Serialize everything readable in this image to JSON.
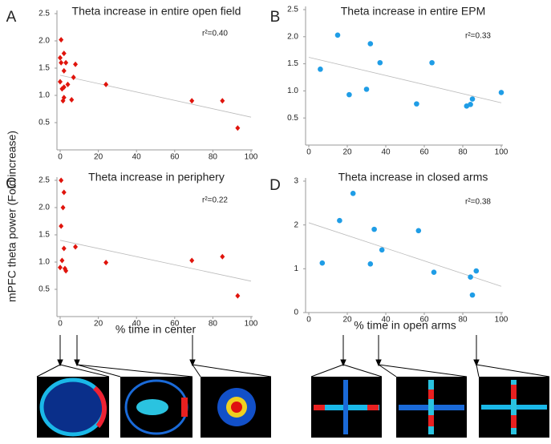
{
  "shared_ylabel": "mPFC theta power (Fold increase)",
  "chart_data": [
    {
      "type": "scatter",
      "label": "A",
      "title": "Theta increase in entire open field",
      "annotation": "r²=0.40",
      "marker": "diamond",
      "color": "#e0140c",
      "x": [
        0.5,
        0,
        2,
        0.5,
        3,
        8,
        2,
        0,
        7,
        1,
        2,
        4,
        2,
        1.5,
        6,
        24,
        69,
        85,
        93
      ],
      "values": [
        2.02,
        1.69,
        1.77,
        1.6,
        1.6,
        1.57,
        1.45,
        1.25,
        1.33,
        1.12,
        1.15,
        1.2,
        0.96,
        0.9,
        0.92,
        1.2,
        0.9,
        0.9,
        0.4
      ],
      "trend": {
        "x": [
          0,
          100
        ],
        "y": [
          1.37,
          0.6
        ]
      },
      "xlim": [
        0,
        100
      ],
      "ylim": [
        0,
        2.5
      ],
      "xticks": [
        0,
        20,
        40,
        60,
        80,
        100
      ],
      "yticks": [
        0.5,
        {
          "value": 1.0,
          "label": "1.0"
        },
        1.5,
        {
          "value": 2.0,
          "label": "2.0"
        },
        2.5
      ]
    },
    {
      "type": "scatter",
      "label": "B",
      "title": "Theta increase in entire EPM",
      "annotation": "r²=0.33",
      "marker": "circle",
      "color": "#1f9de6",
      "x": [
        6,
        15,
        21,
        30,
        32,
        37,
        56,
        64,
        82,
        84,
        85,
        100
      ],
      "values": [
        1.4,
        2.03,
        0.93,
        1.03,
        1.87,
        1.52,
        0.76,
        1.52,
        0.72,
        0.75,
        0.85,
        0.97
      ],
      "trend": {
        "x": [
          0,
          100
        ],
        "y": [
          1.62,
          0.78
        ]
      },
      "xlim": [
        0,
        100
      ],
      "ylim": [
        0,
        2.5
      ],
      "xticks": [
        0,
        20,
        40,
        60,
        80,
        100
      ],
      "yticks": [
        0.5,
        {
          "value": 1.0,
          "label": "1.0"
        },
        1.5,
        {
          "value": 2.0,
          "label": "2.0"
        },
        2.5
      ]
    },
    {
      "type": "scatter",
      "label": "C",
      "title": "Theta increase in periphery",
      "annotation": "r²=0.22",
      "marker": "diamond",
      "color": "#e0140c",
      "xlabel": "% time in center",
      "x": [
        0.5,
        2,
        1.5,
        0.5,
        2,
        1,
        0,
        2.5,
        3,
        8,
        24,
        69,
        85,
        93
      ],
      "values": [
        2.5,
        2.28,
        2.0,
        1.66,
        1.25,
        1.03,
        0.9,
        0.88,
        0.84,
        1.28,
        0.99,
        1.03,
        1.1,
        0.38
      ],
      "trend": {
        "x": [
          0,
          100
        ],
        "y": [
          1.4,
          0.65
        ]
      },
      "xlim": [
        0,
        100
      ],
      "ylim": [
        0,
        2.5
      ],
      "xticks": [
        0,
        20,
        40,
        60,
        80,
        100
      ],
      "yticks": [
        0.5,
        {
          "value": 1.0,
          "label": "1.0"
        },
        1.5,
        {
          "value": 2.0,
          "label": "2.0"
        },
        2.5
      ]
    },
    {
      "type": "scatter",
      "label": "D",
      "title": "Theta increase in closed arms",
      "annotation": "r²=0.38",
      "marker": "circle",
      "color": "#1f9de6",
      "xlabel": "% time in open arms",
      "x": [
        7,
        16,
        23,
        32,
        34,
        38,
        57,
        65,
        84,
        85,
        87
      ],
      "values": [
        1.13,
        2.1,
        2.72,
        1.11,
        1.9,
        1.43,
        1.87,
        0.92,
        0.81,
        0.4,
        0.95
      ],
      "trend": {
        "x": [
          0,
          100
        ],
        "y": [
          2.05,
          0.6
        ]
      },
      "xlim": [
        0,
        100
      ],
      "ylim": [
        0,
        3
      ],
      "xticks": [
        0,
        20,
        40,
        60,
        80,
        100
      ],
      "yticks": [
        0,
        1,
        2,
        3
      ]
    }
  ]
}
